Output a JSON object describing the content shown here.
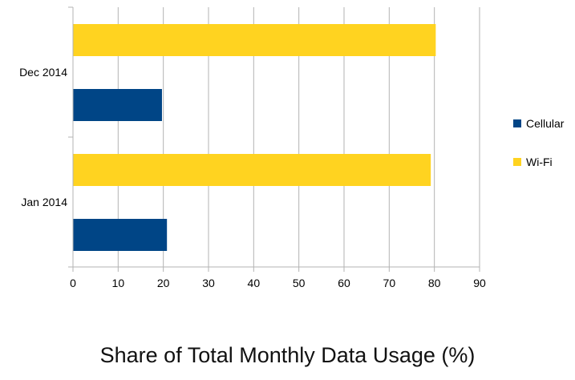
{
  "chart_data": {
    "type": "bar",
    "orientation": "horizontal",
    "title": "Share of Total Monthly Data Usage (%)",
    "categories": [
      "Dec 2014",
      "Jan 2014"
    ],
    "series": [
      {
        "name": "Cellular",
        "color": "#004586",
        "values": [
          19.7,
          20.8
        ]
      },
      {
        "name": "Wi-Fi",
        "color": "#ffd320",
        "values": [
          80.3,
          79.2
        ]
      }
    ],
    "xlim": [
      0,
      90
    ],
    "x_ticks": [
      "0",
      "10",
      "20",
      "30",
      "40",
      "50",
      "60",
      "70",
      "80",
      "90"
    ],
    "grid": "vertical",
    "legend": "right"
  }
}
